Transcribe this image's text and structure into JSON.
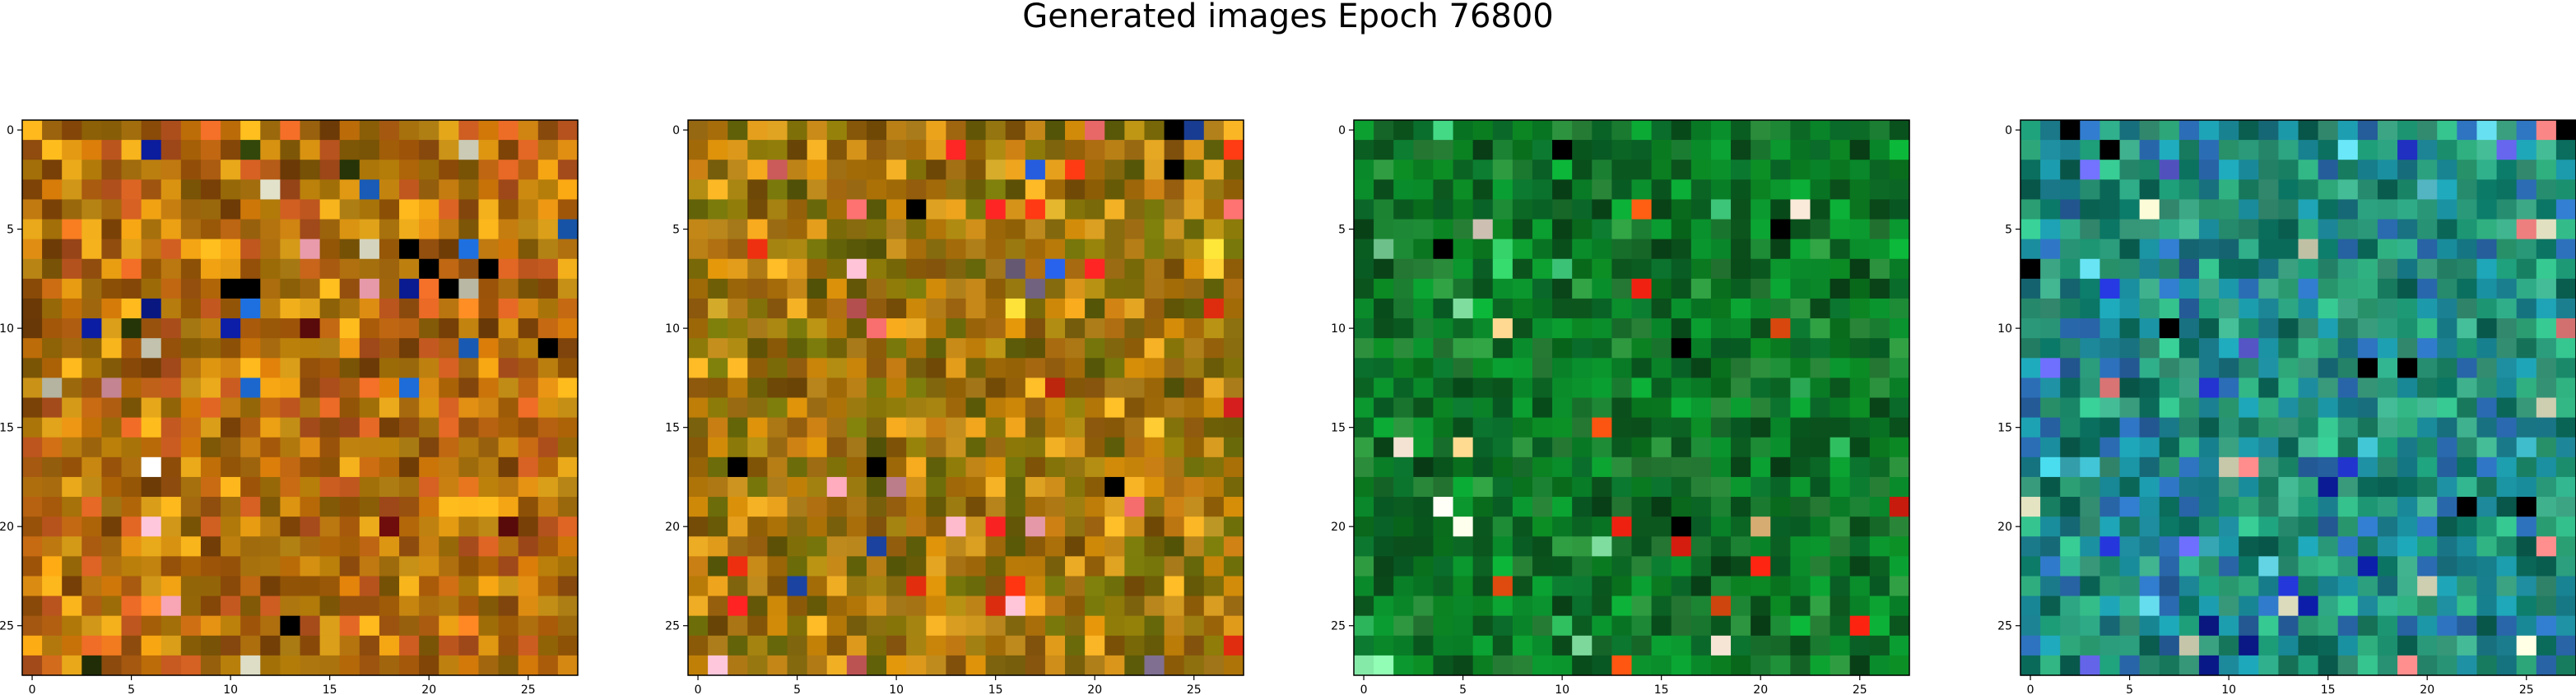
{
  "figure": {
    "title": "Generated images Epoch 76800"
  },
  "chart_data": {
    "type": "heatmap",
    "grid_size": 28,
    "panels": [
      {
        "panel": 1,
        "palette": [
          "#c07a10",
          "#b86a08",
          "#a85a10",
          "#cc8a10",
          "#9a6a08",
          "#d49a18",
          "#8a4a08",
          "#c65a20"
        ],
        "accents": [
          "#5a0a0a",
          "#000000",
          "#2a3a08",
          "#f07a20",
          "#1a60c0",
          "#e8e8d0",
          "#f0a0b0",
          "#0a1a90"
        ],
        "noise": 0.25,
        "xticks": [
          0,
          5,
          10,
          15,
          20,
          25
        ],
        "yticks": [
          0,
          5,
          10,
          15,
          20,
          25
        ],
        "xlim": [
          -0.5,
          27.5
        ],
        "ylim": [
          27.5,
          -0.5
        ]
      },
      {
        "panel": 2,
        "palette": [
          "#b87a08",
          "#9a7a10",
          "#7a6a08",
          "#c88a18",
          "#8a5a08",
          "#a86a10",
          "#d49a20",
          "#6a6a0a"
        ],
        "accents": [
          "#e82020",
          "#f03010",
          "#000000",
          "#d86060",
          "#f0a0b0",
          "#7a6a8a",
          "#f0c030",
          "#2050c0"
        ],
        "noise": 0.25,
        "xticks": [
          0,
          5,
          10,
          15,
          20,
          25
        ],
        "yticks": [
          0,
          5,
          10,
          15,
          20,
          25
        ],
        "xlim": [
          -0.5,
          27.5
        ],
        "ylim": [
          27.5,
          -0.5
        ]
      },
      {
        "panel": 3,
        "palette": [
          "#0a6a2a",
          "#0a8a2a",
          "#0a5a20",
          "#1a7a30",
          "#0a9a30",
          "#0a4a1a",
          "#2a8a3a",
          "#0a7a20"
        ],
        "accents": [
          "#40d080",
          "#80e0a0",
          "#f05010",
          "#e82010",
          "#f0c080",
          "#000000",
          "#f0e0d0",
          "#30c060"
        ],
        "noise": 0.2,
        "xticks": [
          0,
          5,
          10,
          15,
          20,
          25
        ],
        "yticks": [
          0,
          5,
          10,
          15,
          20,
          25
        ],
        "xlim": [
          -0.5,
          27.5
        ],
        "ylim": [
          27.5,
          -0.5
        ]
      },
      {
        "panel": 4,
        "palette": [
          "#1a8a6a",
          "#2a9a7a",
          "#0a6a5a",
          "#3aa080",
          "#1a7a8a",
          "#2a6ab0",
          "#1a90a0",
          "#30b080"
        ],
        "accents": [
          "#0a1a90",
          "#2030c0",
          "#60d0e0",
          "#f08080",
          "#e0e0c0",
          "#000000",
          "#6060e0",
          "#40c0d0"
        ],
        "noise": 0.2,
        "xticks": [
          0,
          5,
          10,
          15,
          20,
          25
        ],
        "yticks": [
          0,
          5,
          10,
          15,
          20,
          25
        ],
        "xlim": [
          -0.5,
          27.5
        ],
        "ylim": [
          27.5,
          -0.5
        ]
      }
    ]
  }
}
